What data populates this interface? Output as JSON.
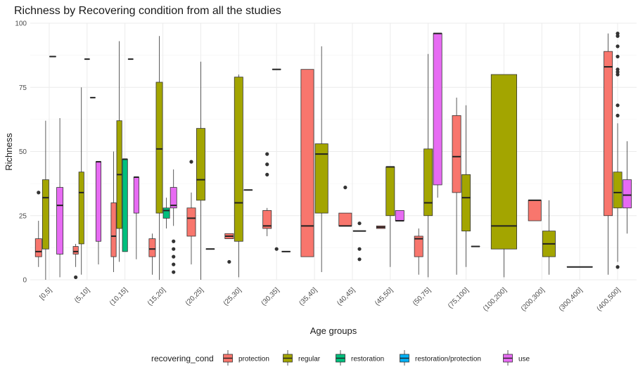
{
  "chart_data": {
    "type": "boxplot",
    "title": "Richness by Recovering condition from all the studies",
    "xlabel": "Age groups",
    "ylabel": "Richness",
    "ylim": [
      0,
      100
    ],
    "yticks": [
      0,
      25,
      50,
      75,
      100
    ],
    "grid": true,
    "legend_position": "bottom",
    "legend_title": "recovering_cond",
    "categories": [
      "[0,5]",
      "(5,10]",
      "(10,15]",
      "(15,20]",
      "(20,25]",
      "(25,30]",
      "(30,35]",
      "(35,40]",
      "(40,45]",
      "(45,50]",
      "(50,75]",
      "(75,100]",
      "(100,200]",
      "(200,300]",
      "(300,400]",
      "(400,500]"
    ],
    "series": [
      {
        "name": "protection",
        "color": "#F8766D"
      },
      {
        "name": "regular",
        "color": "#A3A500"
      },
      {
        "name": "restoration",
        "color": "#00BF7D"
      },
      {
        "name": "restoration/protection",
        "color": "#00B0F6"
      },
      {
        "name": "use",
        "color": "#E76BF3"
      }
    ],
    "boxes": [
      {
        "category": "[0,5]",
        "series": "protection",
        "slot": 0,
        "slots": 4,
        "min": 5,
        "q1": 9,
        "median": 11,
        "q3": 16,
        "max": 23,
        "outliers": [
          34
        ]
      },
      {
        "category": "[0,5]",
        "series": "regular",
        "slot": 1,
        "slots": 4,
        "min": 0,
        "q1": 12,
        "median": 32,
        "q3": 39,
        "max": 62,
        "outliers": []
      },
      {
        "category": "[0,5]",
        "series": "restoration/protection",
        "slot": 2,
        "slots": 4,
        "min": 87,
        "q1": 87,
        "median": 87,
        "q3": 87,
        "max": 87,
        "outliers": []
      },
      {
        "category": "[0,5]",
        "series": "use",
        "slot": 3,
        "slots": 4,
        "min": 1,
        "q1": 10,
        "median": 29,
        "q3": 36,
        "max": 63,
        "outliers": []
      },
      {
        "category": "(5,10]",
        "series": "protection",
        "slot": 0,
        "slots": 5,
        "min": 5,
        "q1": 10,
        "median": 11,
        "q3": 13,
        "max": 14,
        "outliers": [
          1
        ]
      },
      {
        "category": "(5,10]",
        "series": "regular",
        "slot": 1,
        "slots": 5,
        "min": 2,
        "q1": 14,
        "median": 34,
        "q3": 42,
        "max": 75,
        "outliers": []
      },
      {
        "category": "(5,10]",
        "series": "restoration",
        "slot": 2,
        "slots": 5,
        "min": 86,
        "q1": 86,
        "median": 86,
        "q3": 86,
        "max": 86,
        "outliers": []
      },
      {
        "category": "(5,10]",
        "series": "restoration/protection",
        "slot": 3,
        "slots": 5,
        "min": 71,
        "q1": 71,
        "median": 71,
        "q3": 71,
        "max": 71,
        "outliers": []
      },
      {
        "category": "(5,10]",
        "series": "use",
        "slot": 4,
        "slots": 5,
        "min": 6,
        "q1": 15,
        "median": 46,
        "q3": 46,
        "max": 46,
        "outliers": []
      },
      {
        "category": "(10,15]",
        "series": "protection",
        "slot": 0,
        "slots": 5,
        "min": 3,
        "q1": 9,
        "median": 17,
        "q3": 30,
        "max": 50,
        "outliers": []
      },
      {
        "category": "(10,15]",
        "series": "regular",
        "slot": 1,
        "slots": 5,
        "min": 7,
        "q1": 20,
        "median": 41,
        "q3": 62,
        "max": 93,
        "outliers": []
      },
      {
        "category": "(10,15]",
        "series": "restoration",
        "slot": 2,
        "slots": 5,
        "min": 11,
        "q1": 11,
        "median": 47,
        "q3": 47,
        "max": 47,
        "outliers": []
      },
      {
        "category": "(10,15]",
        "series": "restoration/protection",
        "slot": 3,
        "slots": 5,
        "min": 86,
        "q1": 86,
        "median": 86,
        "q3": 86,
        "max": 86,
        "outliers": []
      },
      {
        "category": "(10,15]",
        "series": "use",
        "slot": 4,
        "slots": 5,
        "min": 8,
        "q1": 26,
        "median": 40,
        "q3": 40,
        "max": 40,
        "outliers": []
      },
      {
        "category": "(15,20]",
        "series": "protection",
        "slot": 0,
        "slots": 4,
        "min": 2,
        "q1": 9,
        "median": 12,
        "q3": 16,
        "max": 18,
        "outliers": []
      },
      {
        "category": "(15,20]",
        "series": "regular",
        "slot": 1,
        "slots": 4,
        "min": 0,
        "q1": 26,
        "median": 51,
        "q3": 77,
        "max": 95,
        "outliers": []
      },
      {
        "category": "(15,20]",
        "series": "restoration",
        "slot": 2,
        "slots": 4,
        "min": 20,
        "q1": 24,
        "median": 27,
        "q3": 28,
        "max": 32,
        "outliers": []
      },
      {
        "category": "(15,20]",
        "series": "use",
        "slot": 3,
        "slots": 4,
        "min": 21,
        "q1": 28,
        "median": 29,
        "q3": 36,
        "max": 43,
        "outliers": [
          3,
          6,
          9,
          12,
          15
        ]
      },
      {
        "category": "(20,25]",
        "series": "protection",
        "slot": 0,
        "slots": 3,
        "min": 6,
        "q1": 17,
        "median": 24,
        "q3": 28,
        "max": 34,
        "outliers": [
          46
        ]
      },
      {
        "category": "(20,25]",
        "series": "regular",
        "slot": 1,
        "slots": 3,
        "min": 0,
        "q1": 31,
        "median": 39,
        "q3": 59,
        "max": 85,
        "outliers": []
      },
      {
        "category": "(20,25]",
        "series": "use",
        "slot": 2,
        "slots": 3,
        "min": 12,
        "q1": 12,
        "median": 12,
        "q3": 12,
        "max": 12,
        "outliers": []
      },
      {
        "category": "(25,30]",
        "series": "protection",
        "slot": 0,
        "slots": 3,
        "min": 16,
        "q1": 16,
        "median": 17,
        "q3": 18,
        "max": 18,
        "outliers": [
          7
        ]
      },
      {
        "category": "(25,30]",
        "series": "regular",
        "slot": 1,
        "slots": 3,
        "min": 1,
        "q1": 15,
        "median": 30,
        "q3": 79,
        "max": 80,
        "outliers": []
      },
      {
        "category": "(25,30]",
        "series": "use",
        "slot": 2,
        "slots": 3,
        "min": 35,
        "q1": 35,
        "median": 35,
        "q3": 35,
        "max": 35,
        "outliers": []
      },
      {
        "category": "(30,35]",
        "series": "protection",
        "slot": 0,
        "slots": 3,
        "min": 17,
        "q1": 20,
        "median": 21,
        "q3": 27,
        "max": 28,
        "outliers": [
          41,
          45,
          49
        ]
      },
      {
        "category": "(30,35]",
        "series": "regular",
        "slot": 1,
        "slots": 3,
        "min": 82,
        "q1": 82,
        "median": 82,
        "q3": 82,
        "max": 82,
        "outliers": [
          12
        ]
      },
      {
        "category": "(30,35]",
        "series": "use",
        "slot": 2,
        "slots": 3,
        "min": 11,
        "q1": 11,
        "median": 11,
        "q3": 11,
        "max": 11,
        "outliers": []
      },
      {
        "category": "(35,40]",
        "series": "protection",
        "slot": 0,
        "slots": 2,
        "min": 9,
        "q1": 9,
        "median": 21,
        "q3": 82,
        "max": 82,
        "outliers": []
      },
      {
        "category": "(35,40]",
        "series": "regular",
        "slot": 1,
        "slots": 2,
        "min": 3,
        "q1": 26,
        "median": 49,
        "q3": 53,
        "max": 91,
        "outliers": []
      },
      {
        "category": "(40,45]",
        "series": "protection",
        "slot": 0,
        "slots": 2,
        "min": 21,
        "q1": 21,
        "median": 21,
        "q3": 26,
        "max": 26,
        "outliers": [
          36
        ]
      },
      {
        "category": "(40,45]",
        "series": "regular",
        "slot": 1,
        "slots": 2,
        "min": 19,
        "q1": 19,
        "median": 19,
        "q3": 19,
        "max": 19,
        "outliers": [
          8,
          12,
          22
        ]
      },
      {
        "category": "(45,50]",
        "series": "protection",
        "slot": 0,
        "slots": 3,
        "min": 20,
        "q1": 20,
        "median": 20.5,
        "q3": 21,
        "max": 21,
        "outliers": []
      },
      {
        "category": "(45,50]",
        "series": "regular",
        "slot": 1,
        "slots": 3,
        "min": 5,
        "q1": 25,
        "median": 44,
        "q3": 44,
        "max": 44,
        "outliers": []
      },
      {
        "category": "(45,50]",
        "series": "use",
        "slot": 2,
        "slots": 3,
        "min": 23,
        "q1": 23,
        "median": 23,
        "q3": 27,
        "max": 27,
        "outliers": []
      },
      {
        "category": "(50,75]",
        "series": "protection",
        "slot": 0,
        "slots": 3,
        "min": 2,
        "q1": 9,
        "median": 16,
        "q3": 17,
        "max": 20,
        "outliers": []
      },
      {
        "category": "(50,75]",
        "series": "regular",
        "slot": 1,
        "slots": 3,
        "min": 1,
        "q1": 25,
        "median": 30,
        "q3": 51,
        "max": 88,
        "outliers": []
      },
      {
        "category": "(50,75]",
        "series": "use",
        "slot": 2,
        "slots": 3,
        "min": 32,
        "q1": 37,
        "median": 96,
        "q3": 96,
        "max": 96,
        "outliers": []
      },
      {
        "category": "(75,100]",
        "series": "protection",
        "slot": 0,
        "slots": 3,
        "min": 2,
        "q1": 34,
        "median": 48,
        "q3": 64,
        "max": 71,
        "outliers": []
      },
      {
        "category": "(75,100]",
        "series": "regular",
        "slot": 1,
        "slots": 3,
        "min": 5,
        "q1": 19,
        "median": 32,
        "q3": 41,
        "max": 68,
        "outliers": []
      },
      {
        "category": "(75,100]",
        "series": "use",
        "slot": 2,
        "slots": 3,
        "min": 13,
        "q1": 13,
        "median": 13,
        "q3": 13,
        "max": 13,
        "outliers": []
      },
      {
        "category": "(100,200]",
        "series": "regular",
        "slot": 0,
        "slots": 1,
        "min": 1,
        "q1": 12,
        "median": 21,
        "q3": 80,
        "max": 80,
        "outliers": []
      },
      {
        "category": "(200,300]",
        "series": "protection",
        "slot": 0,
        "slots": 2,
        "min": 23,
        "q1": 23,
        "median": 31,
        "q3": 31,
        "max": 31,
        "outliers": []
      },
      {
        "category": "(200,300]",
        "series": "regular",
        "slot": 1,
        "slots": 2,
        "min": 2,
        "q1": 9,
        "median": 14,
        "q3": 19,
        "max": 31,
        "outliers": []
      },
      {
        "category": "(300,400]",
        "series": "regular",
        "slot": 0,
        "slots": 1,
        "min": 5,
        "q1": 5,
        "median": 5,
        "q3": 5,
        "max": 5,
        "outliers": []
      },
      {
        "category": "(400,500]",
        "series": "protection",
        "slot": 0,
        "slots": 3,
        "min": 2,
        "q1": 25,
        "median": 83,
        "q3": 89,
        "max": 96,
        "outliers": []
      },
      {
        "category": "(400,500]",
        "series": "regular",
        "slot": 1,
        "slots": 3,
        "min": 7,
        "q1": 28,
        "median": 34,
        "q3": 42,
        "max": 61,
        "outliers": [
          5,
          64,
          68,
          80,
          81,
          82,
          87,
          91,
          95,
          96
        ]
      },
      {
        "category": "(400,500]",
        "series": "use",
        "slot": 2,
        "slots": 3,
        "min": 18,
        "q1": 28,
        "median": 33,
        "q3": 39,
        "max": 54,
        "outliers": []
      }
    ]
  }
}
